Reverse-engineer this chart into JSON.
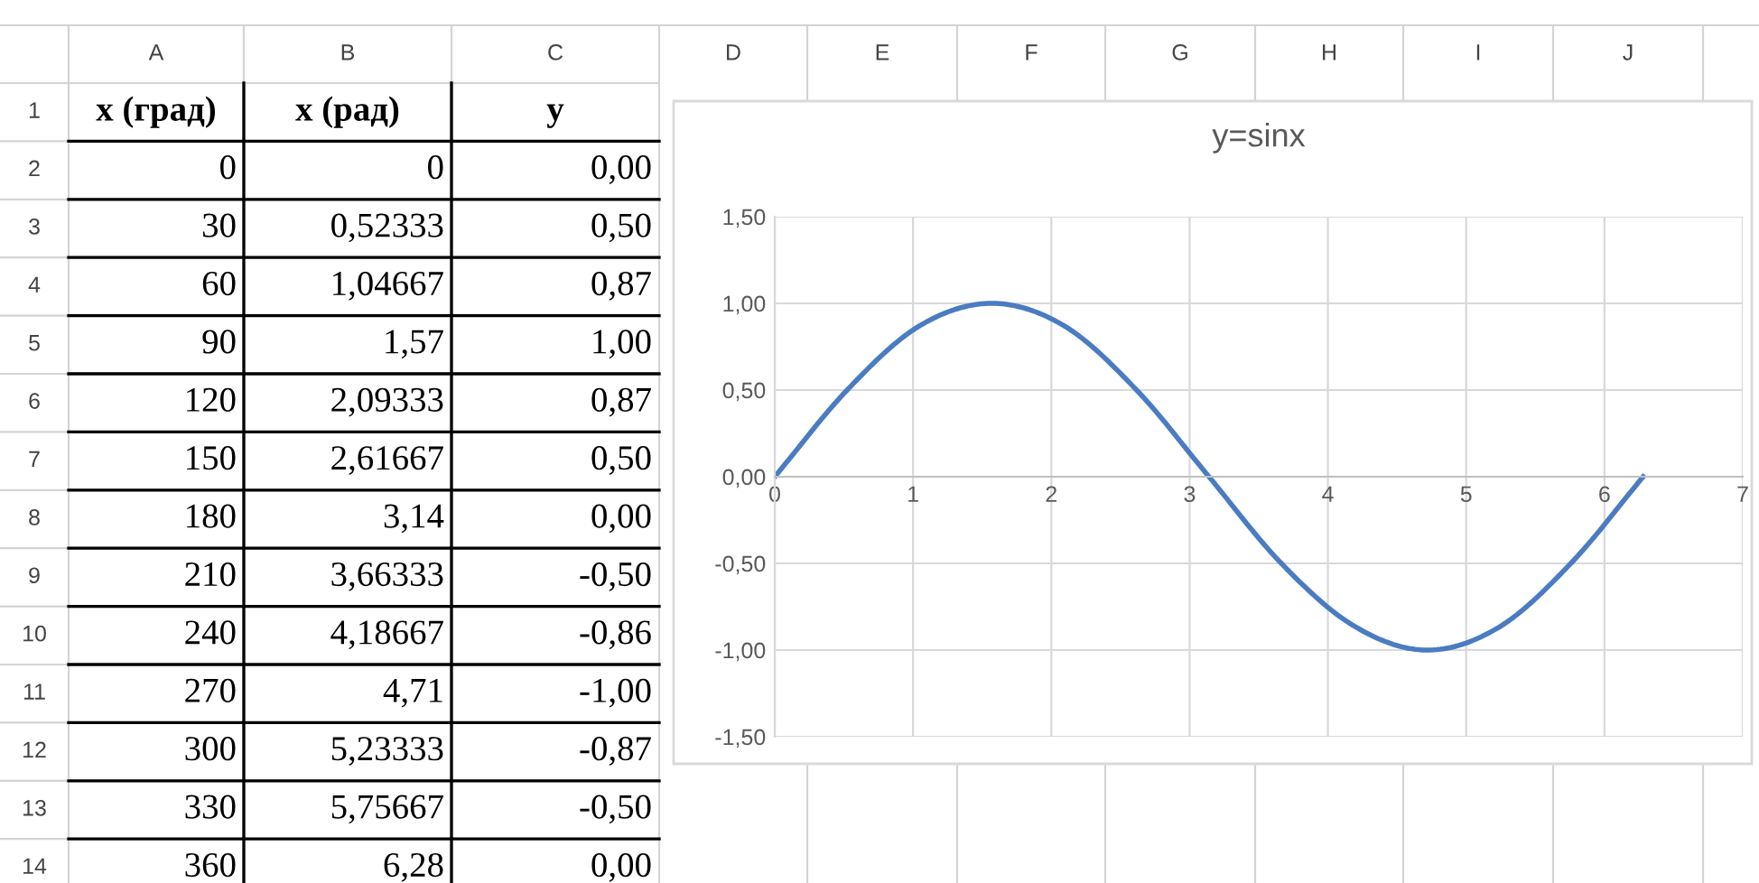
{
  "chart_data": {
    "type": "line",
    "title": "y=sinx",
    "x": [
      0,
      0.52333,
      1.04667,
      1.57,
      2.09333,
      2.61667,
      3.14,
      3.66333,
      4.18667,
      4.71,
      5.23333,
      5.75667,
      6.28
    ],
    "series": [
      {
        "color": "#4a7cc2",
        "values": [
          0.0,
          0.5,
          0.87,
          1.0,
          0.87,
          0.5,
          0.0,
          -0.5,
          -0.86,
          -1.0,
          -0.87,
          -0.5,
          0.0
        ]
      }
    ],
    "xlim": [
      0,
      7
    ],
    "xticks": [
      0,
      1,
      2,
      3,
      4,
      5,
      6,
      7
    ],
    "ylim": [
      -1.5,
      1.5
    ],
    "yticks": [
      {
        "value": -1.5,
        "label": "-1,50"
      },
      {
        "value": -1.0,
        "label": "-1,00"
      },
      {
        "value": -0.5,
        "label": "-0,50"
      },
      {
        "value": 0,
        "label": "0,00"
      },
      {
        "value": 0.5,
        "label": "0,50"
      },
      {
        "value": 1.0,
        "label": "1,00"
      },
      {
        "value": 1.5,
        "label": "1,50"
      }
    ],
    "grid": true,
    "marker": "none",
    "line_style": "solid",
    "annotations": [
      "x (град)",
      "x (рад)",
      "y",
      "0",
      "30",
      "60",
      "90",
      "120",
      "150",
      "180",
      "210",
      "240",
      "270",
      "300",
      "330",
      "360",
      "0",
      "0,52333",
      "1,04667",
      "1,57",
      "2,09333",
      "2,61667",
      "3,14",
      "3,66333",
      "4,18667",
      "4,71",
      "5,23333",
      "5,75667",
      "6,28",
      "0,00",
      "0,50",
      "0,87",
      "1,00",
      "0,87",
      "0,50",
      "0,00",
      "-0,50",
      "-0,86",
      "-1,00",
      "-0,87",
      "-0,50",
      "0,00",
      "A",
      "B",
      "C",
      "D",
      "E",
      "F",
      "G",
      "H",
      "I",
      "J",
      "1",
      "2",
      "3",
      "4",
      "5",
      "6",
      "7",
      "8",
      "9",
      "10",
      "11",
      "12",
      "13",
      "14"
    ]
  }
}
